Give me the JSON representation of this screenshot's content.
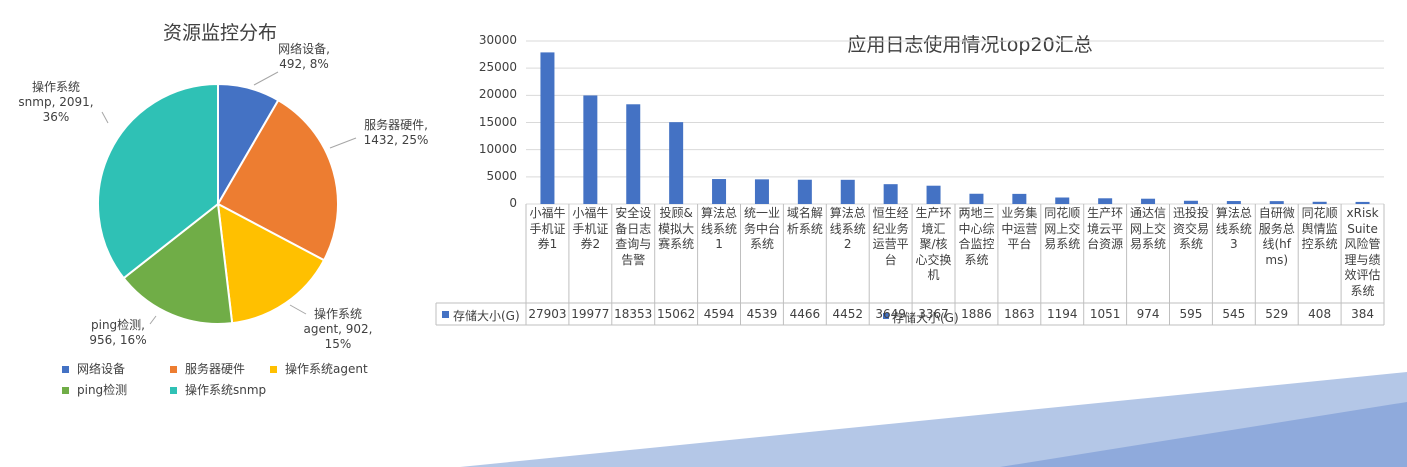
{
  "colors": {
    "background": "#ffffff",
    "text": "#404040",
    "grid": "#d9d9d9",
    "bar": "#4472c4",
    "deco_light": "#b4c7e7",
    "deco_dark": "#8faadc"
  },
  "chart_data": [
    {
      "type": "pie",
      "title": "资源监控分布",
      "slices": [
        {
          "name": "网络设备",
          "value": 492,
          "percent": 8,
          "color": "#4472c4",
          "label_lines": [
            "网络设备,",
            "492, 8%"
          ]
        },
        {
          "name": "服务器硬件",
          "value": 1432,
          "percent": 25,
          "color": "#ed7d31",
          "label_lines": [
            "服务器硬件,",
            "1432, 25%"
          ]
        },
        {
          "name": "操作系统agent",
          "value": 902,
          "percent": 15,
          "color": "#ffc000",
          "label_lines": [
            "操作系统",
            "agent, 902,",
            "15%"
          ]
        },
        {
          "name": "ping检测",
          "value": 956,
          "percent": 16,
          "color": "#70ad47",
          "label_lines": [
            "ping检测,",
            "956, 16%"
          ]
        },
        {
          "name": "操作系统snmp",
          "value": 2091,
          "percent": 36,
          "color": "#2fc1b5",
          "label_lines": [
            "操作系统",
            "snmp, 2091,",
            "36%"
          ]
        }
      ],
      "legend": [
        "网络设备",
        "服务器硬件",
        "操作系统agent",
        "ping检测",
        "操作系统snmp"
      ],
      "legend_position": "bottom"
    },
    {
      "type": "bar",
      "title": "应用日志使用情况top20汇总",
      "series": [
        {
          "name": "存储大小(G)",
          "values": [
            27903,
            19977,
            18353,
            15062,
            4594,
            4539,
            4466,
            4452,
            3649,
            3367,
            1886,
            1863,
            1194,
            1051,
            974,
            595,
            545,
            529,
            408,
            384
          ]
        }
      ],
      "categories": [
        "小福牛手机证券1",
        "小福牛手机证券2",
        "安全设备日志查询与告警",
        "投顾&模拟大赛系统",
        "算法总线系统1",
        "统一业务中台系统",
        "域名解析系统",
        "算法总线系统2",
        "恒生经纪业务运营平台",
        "生产环境汇聚/核心交换机",
        "两地三中心综合监控系统",
        "业务集中运营平台",
        "同花顺网上交易系统",
        "生产环境云平台资源",
        "通达信网上交易系统",
        "迅投投资交易系统",
        "算法总线系统3",
        "自研微服务总线(hfms)",
        "同花顺舆情监控系统",
        "xRiskSuite风险管理与绩效评估系统"
      ],
      "value_labels": [
        "27903",
        "19977",
        "18353",
        "15062",
        "4594",
        "4539",
        "4466",
        "4452",
        "3649",
        "3367",
        "1886",
        "1863",
        "1194",
        "1051",
        "974",
        "595",
        "545",
        "529",
        "408",
        "384"
      ],
      "overlap_label": "存储大小(G)",
      "y_ticks": [
        "30000",
        "25000",
        "20000",
        "15000",
        "10000",
        "5000",
        "0"
      ],
      "ylim": [
        0,
        30000
      ],
      "grid": true,
      "data_table": true
    }
  ]
}
